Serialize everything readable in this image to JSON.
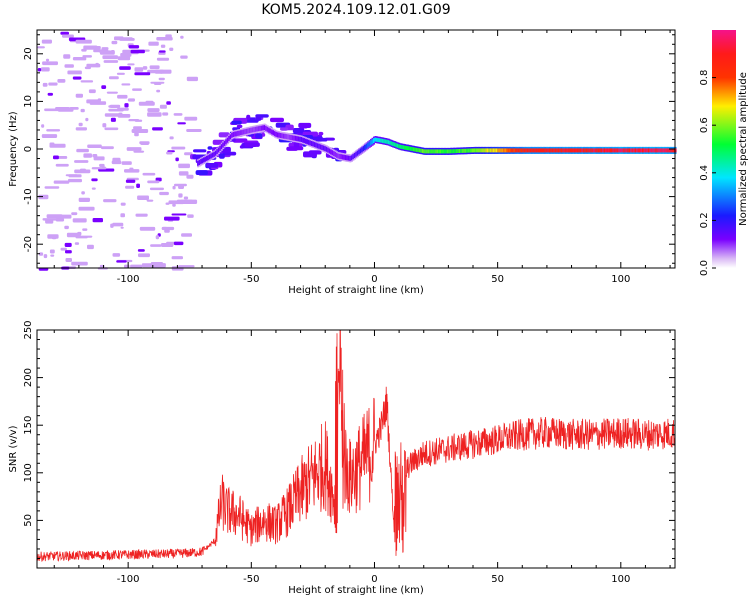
{
  "figure": {
    "title": "KOM5.2024.109.12.01.G09"
  },
  "chart_data": [
    {
      "type": "heatmap",
      "title": "KOM5.2024.109.12.01.G09",
      "xlabel": "Height of straight line (km)",
      "ylabel": "Frequency (Hz)",
      "xlim": [
        -137,
        122
      ],
      "ylim": [
        -25,
        25
      ],
      "xticks": [
        -100,
        -50,
        0,
        50,
        100
      ],
      "yticks": [
        -20,
        -10,
        0,
        10,
        20
      ],
      "grid": false,
      "colorbar": {
        "label": "Normalized spectral amplitude",
        "range": [
          0,
          1
        ],
        "ticks": [
          0.0,
          0.2,
          0.4,
          0.6,
          0.8
        ],
        "colormap": "rainbow (magenta-violet-blue-cyan-green-yellow-red-pink)"
      },
      "ridge": {
        "description": "frequency ridge of the signal",
        "x": [
          -72,
          -65,
          -58,
          -50,
          -45,
          -40,
          -35,
          -30,
          -25,
          -20,
          -15,
          -10,
          -5,
          0,
          5,
          10,
          15,
          20,
          30,
          40,
          60,
          80,
          100,
          122
        ],
        "y": [
          -3,
          -1,
          3,
          4,
          4.5,
          3,
          2.5,
          2,
          1,
          0,
          -1.5,
          -2,
          0,
          2,
          1.5,
          0.5,
          0,
          -0.5,
          -0.5,
          -0.3,
          -0.3,
          -0.3,
          -0.3,
          -0.3
        ],
        "amplitude": [
          0.15,
          0.15,
          0.12,
          0.1,
          0.12,
          0.12,
          0.1,
          0.15,
          0.15,
          0.15,
          0.1,
          0.15,
          0.2,
          0.4,
          0.45,
          0.5,
          0.55,
          0.6,
          0.55,
          0.6,
          0.9,
          0.95,
          0.97,
          0.97
        ]
      }
    },
    {
      "type": "line",
      "xlabel": "Height of straight line (km)",
      "ylabel": "SNR (v/v)",
      "xlim": [
        -137,
        122
      ],
      "ylim": [
        0,
        250
      ],
      "xticks": [
        -100,
        -50,
        0,
        50,
        100
      ],
      "yticks": [
        50,
        100,
        150,
        200,
        250
      ],
      "grid": false,
      "series": [
        {
          "color": "#ee2222",
          "description": "dense noisy SNR trace",
          "x": [
            -137,
            -120,
            -100,
            -80,
            -70,
            -65,
            -62,
            -60,
            -55,
            -50,
            -45,
            -40,
            -35,
            -30,
            -25,
            -20,
            -18,
            -15,
            -14,
            -13,
            -12,
            -10,
            -5,
            0,
            3,
            5,
            8,
            10,
            12,
            15,
            20,
            30,
            40,
            50,
            60,
            70,
            80,
            90,
            100,
            110,
            122
          ],
          "y": [
            12,
            13,
            14,
            15,
            17,
            28,
            70,
            60,
            55,
            40,
            50,
            45,
            60,
            80,
            95,
            110,
            90,
            60,
            240,
            80,
            110,
            95,
            110,
            130,
            150,
            175,
            40,
            10,
            100,
            110,
            120,
            125,
            130,
            135,
            140,
            142,
            140,
            140,
            142,
            140,
            142
          ]
        }
      ]
    }
  ]
}
